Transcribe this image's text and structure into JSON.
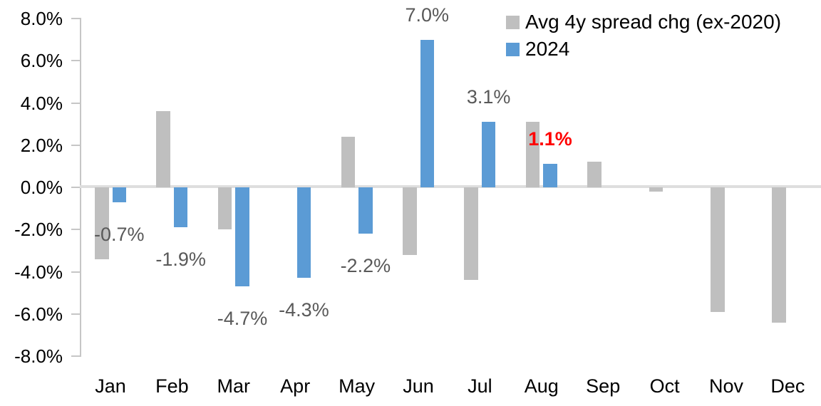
{
  "chart_data": {
    "type": "bar",
    "title": "",
    "xlabel": "",
    "ylabel": "",
    "categories": [
      "Jan",
      "Feb",
      "Mar",
      "Apr",
      "May",
      "Jun",
      "Jul",
      "Aug",
      "Sep",
      "Oct",
      "Nov",
      "Dec"
    ],
    "series": [
      {
        "name": "Avg 4y spread chg (ex-2020)",
        "color": "#BFBFBF",
        "values": [
          -3.4,
          3.6,
          -2.0,
          0.0,
          2.4,
          -3.2,
          -4.4,
          3.1,
          1.2,
          -0.2,
          -5.9,
          -6.4
        ]
      },
      {
        "name": "2024",
        "color": "#5B9BD5",
        "values": [
          -0.7,
          -1.9,
          -4.7,
          -4.3,
          -2.2,
          7.0,
          3.1,
          1.1,
          null,
          null,
          null,
          null
        ]
      }
    ],
    "data_labels": [
      {
        "month_index": 0,
        "series_index": 1,
        "text": "-0.7%",
        "highlight": false
      },
      {
        "month_index": 1,
        "series_index": 1,
        "text": "-1.9%",
        "highlight": false
      },
      {
        "month_index": 2,
        "series_index": 1,
        "text": "-4.7%",
        "highlight": false
      },
      {
        "month_index": 3,
        "series_index": 1,
        "text": "-4.3%",
        "highlight": false
      },
      {
        "month_index": 4,
        "series_index": 1,
        "text": "-2.2%",
        "highlight": false
      },
      {
        "month_index": 5,
        "series_index": 1,
        "text": "7.0%",
        "highlight": false
      },
      {
        "month_index": 6,
        "series_index": 1,
        "text": "3.1%",
        "highlight": false
      },
      {
        "month_index": 7,
        "series_index": 1,
        "text": "1.1%",
        "highlight": true
      }
    ],
    "y_axis": {
      "ylim": [
        -8.0,
        8.0
      ],
      "tick_step": 2.0,
      "tick_labels": [
        "8.0%",
        "6.0%",
        "4.0%",
        "2.0%",
        "0.0%",
        "-2.0%",
        "-4.0%",
        "-6.0%",
        "-8.0%"
      ],
      "tick_values": [
        8,
        6,
        4,
        2,
        0,
        -2,
        -4,
        -6,
        -8
      ]
    },
    "legend": {
      "position": "top-right",
      "entries": [
        {
          "label": "Avg 4y spread chg (ex-2020)",
          "color": "#BFBFBF"
        },
        {
          "label": "2024",
          "color": "#5B9BD5"
        }
      ]
    },
    "grid": "off",
    "colors": {
      "gray_series": "#BFBFBF",
      "blue_series": "#5B9BD5",
      "data_label": "#595959",
      "highlight_label": "#FF0000",
      "axis_line": "#C6C6C6",
      "zero_line": "#DEDEDE",
      "axis_text": "#000000"
    }
  }
}
